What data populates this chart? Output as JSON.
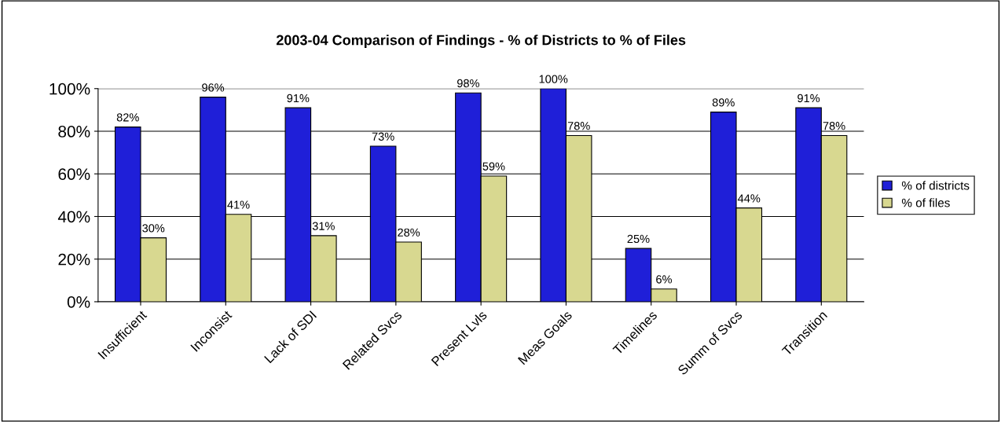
{
  "chart_data": {
    "type": "bar",
    "title": "2003-04 Comparison of Findings - % of Districts to % of Files",
    "categories": [
      "Insufficient",
      "Inconsist",
      "Lack of SDI",
      "Related Svcs",
      "Present Lvls",
      "Meas Goals",
      "Timelines",
      "Summ of Svcs",
      "Transition"
    ],
    "series": [
      {
        "name": "% of districts",
        "color": "#1f1fd8",
        "values": [
          82,
          96,
          91,
          73,
          98,
          100,
          25,
          89,
          91
        ],
        "value_labels": [
          "82%",
          "96%",
          "91%",
          "73%",
          "98%",
          "100%",
          "25%",
          "89%",
          "91%"
        ]
      },
      {
        "name": "% of files",
        "color": "#d8d890",
        "values": [
          30,
          41,
          31,
          28,
          59,
          78,
          6,
          44,
          78
        ],
        "value_labels": [
          "30%",
          "41%",
          "31%",
          "28%",
          "59%",
          "78%",
          "6%",
          "44%",
          "78%"
        ]
      }
    ],
    "ylim": [
      0,
      100
    ],
    "yticks": [
      {
        "value": 0,
        "label": "0%"
      },
      {
        "value": 20,
        "label": "20%"
      },
      {
        "value": 40,
        "label": "40%"
      },
      {
        "value": 60,
        "label": "60%"
      },
      {
        "value": 80,
        "label": "80%"
      },
      {
        "value": 100,
        "label": "100%"
      }
    ],
    "grid": "y",
    "legend": "right"
  }
}
